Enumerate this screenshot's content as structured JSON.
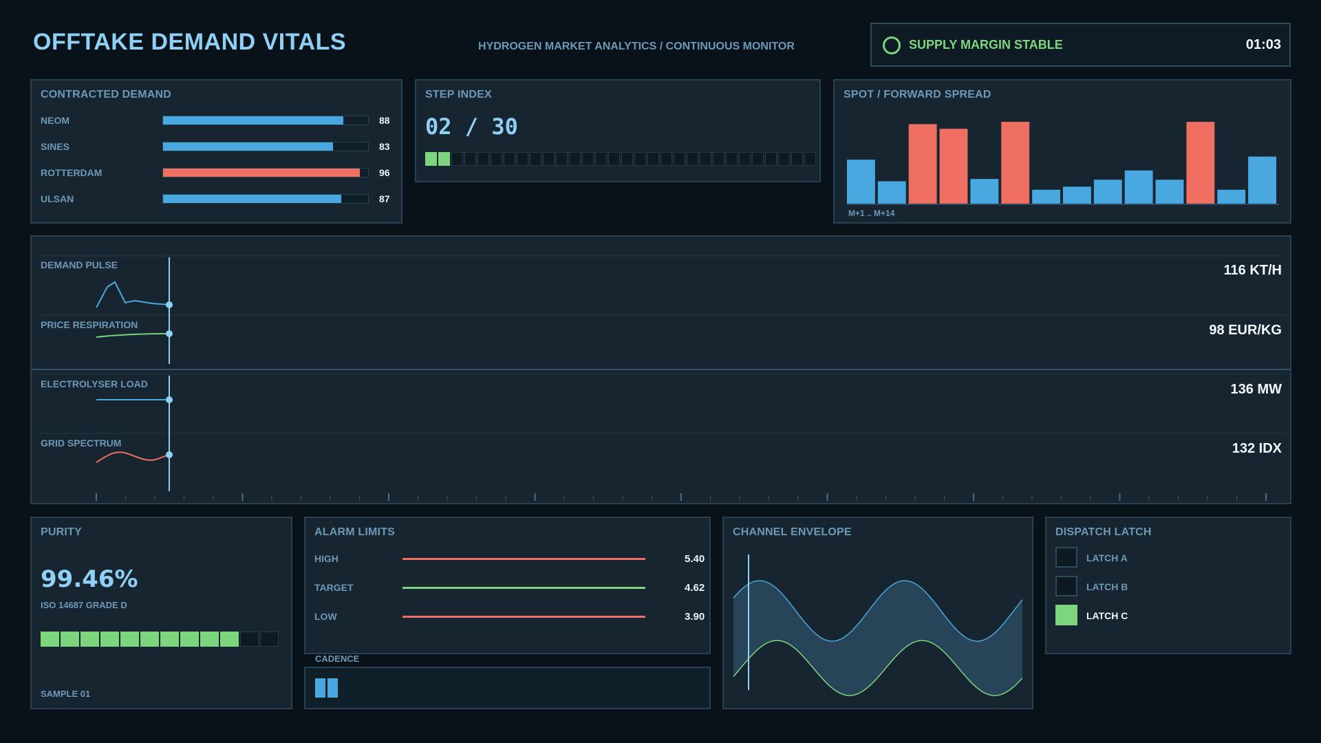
{
  "header": {
    "title": "OFFTAKE DEMAND VITALS",
    "subtitle": "HYDROGEN MARKET ANALYTICS / CONTINUOUS MONITOR",
    "status_text": "SUPPLY MARGIN STABLE",
    "status_time": "01:03",
    "status_color": "#7dd67d"
  },
  "contracted_demand": {
    "title": "CONTRACTED DEMAND",
    "rows": [
      {
        "label": "NEOM",
        "value": "88",
        "level": 88,
        "color": "#4aa8e0"
      },
      {
        "label": "SINES",
        "value": "83",
        "level": 83,
        "color": "#4aa8e0"
      },
      {
        "label": "ROTTERDAM",
        "value": "96",
        "level": 96,
        "color": "#ef6f62"
      },
      {
        "label": "ULSAN",
        "value": "87",
        "level": 87,
        "color": "#4aa8e0"
      }
    ]
  },
  "step_index": {
    "title": "STEP INDEX",
    "value": "02 / 30",
    "current": 2,
    "total": 30
  },
  "spread": {
    "title": "SPOT / FORWARD SPREAD",
    "axis_label": "M+1 .. M+14"
  },
  "chart_data": {
    "type": "bar",
    "categories": [
      "M+1",
      "M+2",
      "M+3",
      "M+4",
      "M+5",
      "M+6",
      "M+7",
      "M+8",
      "M+9",
      "M+10",
      "M+11",
      "M+12",
      "M+13",
      "M+14"
    ],
    "values": [
      57,
      29,
      103,
      97,
      32,
      106,
      18,
      22,
      31,
      43,
      31,
      106,
      18,
      61
    ],
    "highlight": [
      false,
      false,
      true,
      true,
      false,
      true,
      false,
      false,
      false,
      false,
      false,
      true,
      false,
      false
    ],
    "colors": {
      "normal": "#4aa8e0",
      "highlight": "#ef6f62"
    },
    "ylim": [
      0,
      115
    ]
  },
  "traces": [
    {
      "label": "DEMAND PULSE",
      "value": "116 KT/H",
      "color": "#4aa8e0"
    },
    {
      "label": "PRICE RESPIRATION",
      "value": "98 EUR/KG",
      "color": "#7dd67d"
    },
    {
      "label": "ELECTROLYSER LOAD",
      "value": "136 MW",
      "color": "#4aa8e0"
    },
    {
      "label": "GRID SPECTRUM",
      "value": "132 IDX",
      "color": "#ef6f62"
    }
  ],
  "purity": {
    "title": "PURITY",
    "value": "99.46%",
    "grade": "ISO 14687 GRADE D",
    "sample": "SAMPLE 01",
    "filled": 10,
    "total": 12
  },
  "alarm_limits": {
    "title": "ALARM LIMITS",
    "rows": [
      {
        "label": "HIGH",
        "value": "5.40",
        "color": "#ef6f62"
      },
      {
        "label": "TARGET",
        "value": "4.62",
        "color": "#7dd67d"
      },
      {
        "label": "LOW",
        "value": "3.90",
        "color": "#ef6f62"
      }
    ]
  },
  "cadence": {
    "label": "CADENCE"
  },
  "envelope": {
    "title": "CHANNEL ENVELOPE"
  },
  "dispatch_latch": {
    "title": "DISPATCH LATCH",
    "latches": [
      {
        "label": "LATCH A",
        "active": false
      },
      {
        "label": "LATCH B",
        "active": false
      },
      {
        "label": "LATCH C",
        "active": true
      }
    ]
  }
}
